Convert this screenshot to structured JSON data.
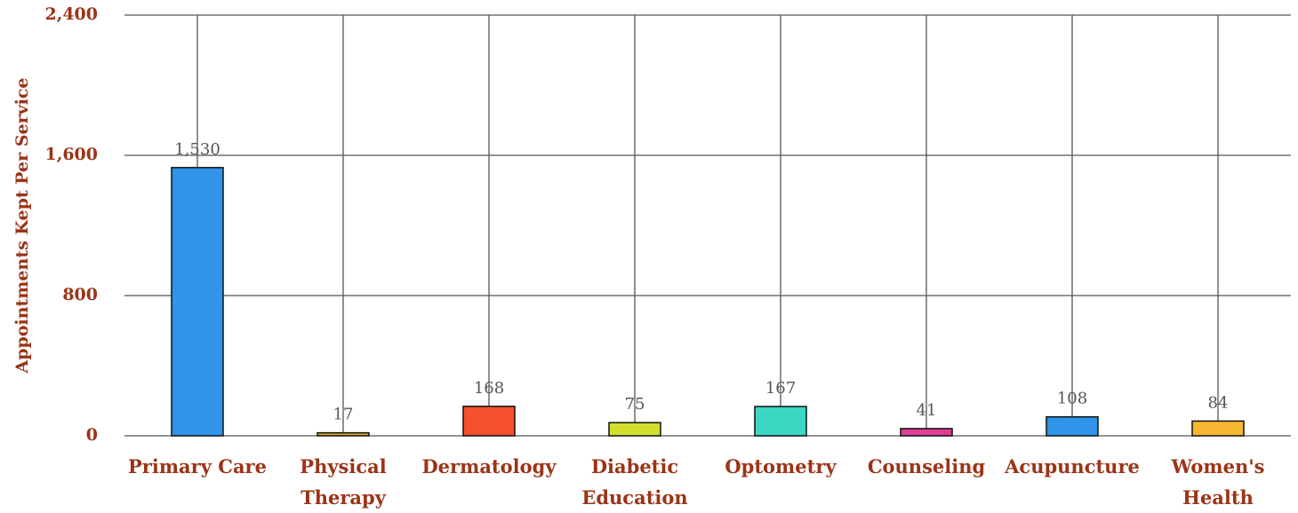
{
  "chart_data": {
    "type": "bar",
    "y_label": "Appointments Kept Per Service",
    "categories": [
      "Primary Care",
      "Physical Therapy",
      "Dermatology",
      "Diabetic Education",
      "Optometry",
      "Counseling",
      "Acupuncture",
      "Women's Health"
    ],
    "values": [
      1530,
      17,
      168,
      75,
      167,
      41,
      108,
      84
    ],
    "value_labels": [
      "1,530",
      "17",
      "168",
      "75",
      "167",
      "41",
      "108",
      "84"
    ],
    "colors": [
      "#3094ea",
      "#d9a62a",
      "#f4502b",
      "#d2e02c",
      "#3ad8c3",
      "#df3f95",
      "#3094ea",
      "#f6b830"
    ],
    "ylim": [
      0,
      2400
    ],
    "yticks": [
      0,
      800,
      {
        "value": 1600,
        "label": "1,600"
      },
      {
        "value": 2400,
        "label": "2,400"
      }
    ],
    "grid": true
  }
}
